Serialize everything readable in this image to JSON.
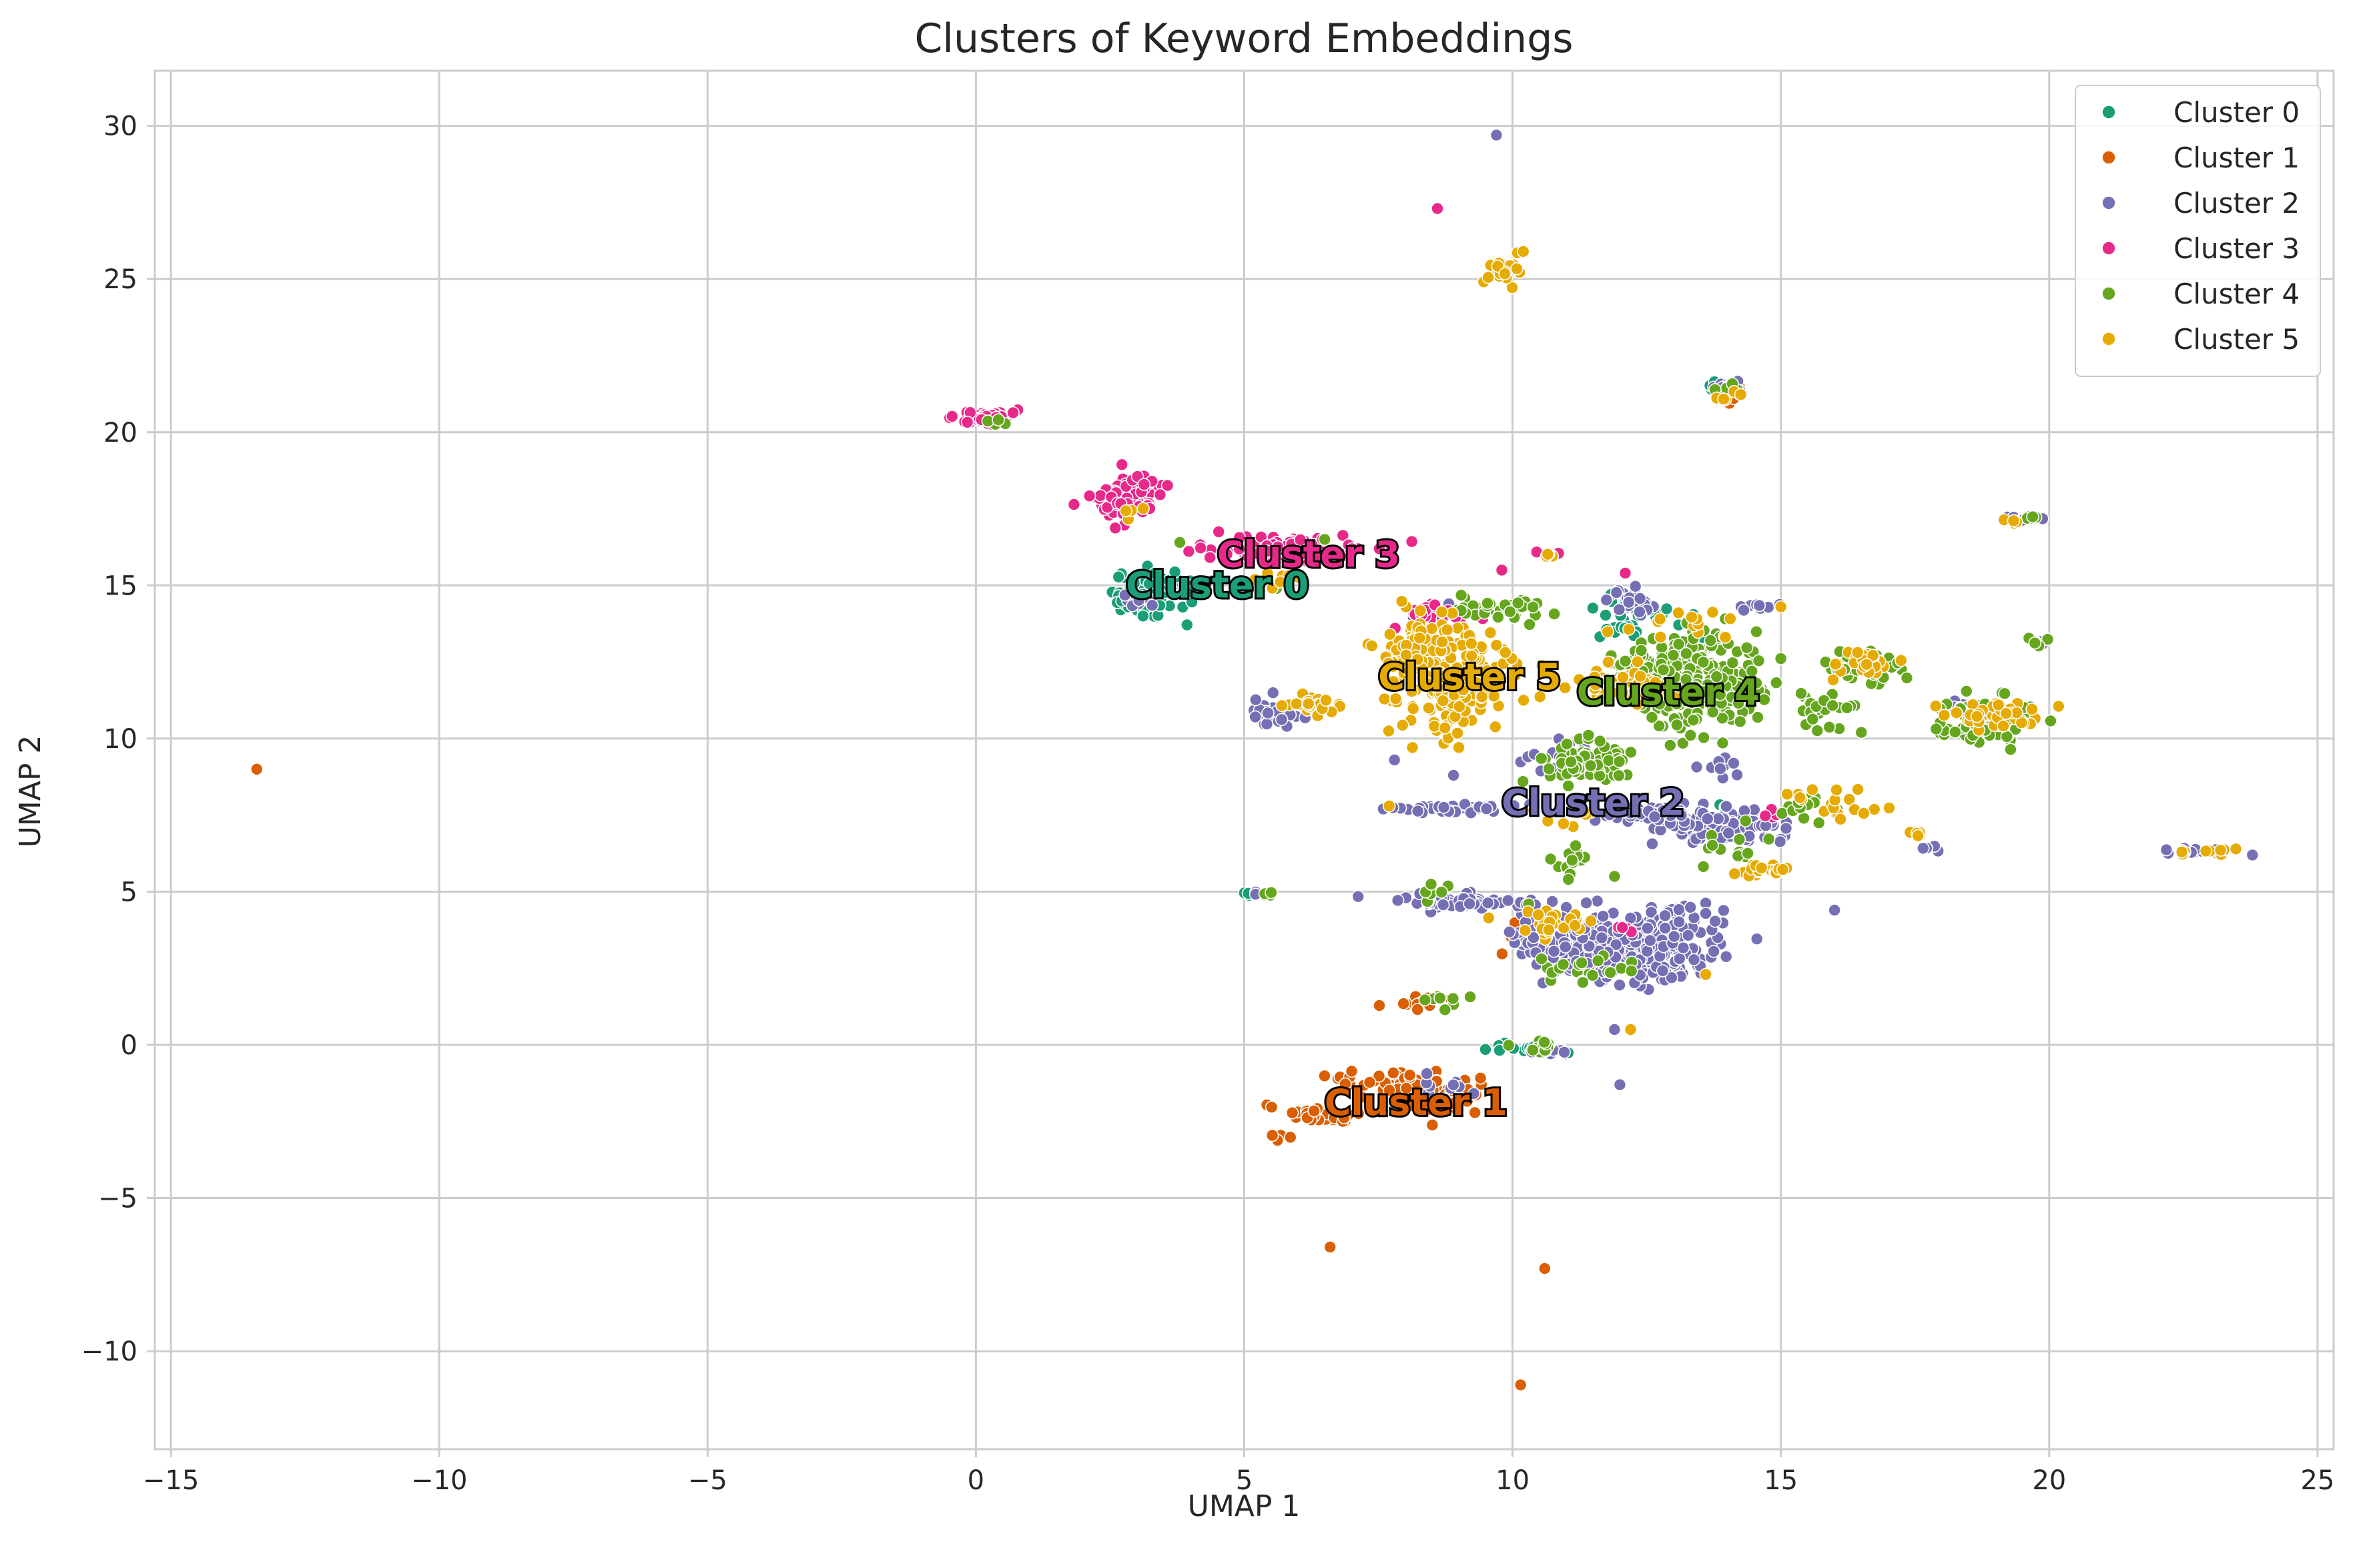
{
  "chart_data": {
    "type": "scatter",
    "title": "Clusters of Keyword Embeddings",
    "xlabel": "UMAP 1",
    "ylabel": "UMAP 2",
    "xlim": [
      -15.3,
      25.3
    ],
    "ylim": [
      -13.2,
      31.8
    ],
    "xticks": [
      -15,
      -10,
      -5,
      0,
      5,
      10,
      15,
      20,
      25
    ],
    "yticks": [
      -10,
      -5,
      0,
      5,
      10,
      15,
      20,
      25,
      30
    ],
    "xtick_labels": [
      "−15",
      "−10",
      "−5",
      "0",
      "5",
      "10",
      "15",
      "20",
      "25"
    ],
    "ytick_labels": [
      "−10",
      "−5",
      "0",
      "5",
      "10",
      "15",
      "20",
      "25",
      "30"
    ],
    "grid": true,
    "legend_position": "top-right",
    "series": [
      {
        "name": "Cluster 0",
        "color": "#1b9e77",
        "centroid": [
          4.5,
          15.0
        ],
        "label": "Cluster 0",
        "clusters": [
          [
            3.2,
            14.6,
            0.35,
            0.45,
            70
          ],
          [
            3.6,
            15.0,
            0.3,
            0.3,
            20
          ],
          [
            0.2,
            20.4,
            0.2,
            0.1,
            5
          ],
          [
            14.0,
            21.5,
            0.3,
            0.1,
            15
          ],
          [
            12.4,
            14.2,
            0.4,
            0.3,
            25
          ],
          [
            12.0,
            13.6,
            0.3,
            0.2,
            10
          ],
          [
            10.2,
            -0.1,
            0.4,
            0.12,
            15
          ],
          [
            14.0,
            7.8,
            0.1,
            0.1,
            3
          ],
          [
            5.2,
            4.9,
            0.15,
            0.05,
            4
          ],
          [
            13.2,
            13.0,
            0.4,
            0.3,
            10
          ]
        ],
        "outliers": []
      },
      {
        "name": "Cluster 1",
        "color": "#d95f02",
        "centroid": [
          8.2,
          -1.9
        ],
        "label": "Cluster 1",
        "clusters": [
          [
            6.5,
            -2.3,
            0.4,
            0.15,
            40
          ],
          [
            7.6,
            -1.1,
            0.6,
            0.25,
            30
          ],
          [
            8.6,
            -1.7,
            0.45,
            0.35,
            40
          ],
          [
            8.3,
            1.3,
            0.3,
            0.12,
            12
          ],
          [
            5.7,
            -3.0,
            0.2,
            0.15,
            4
          ],
          [
            5.5,
            -2.0,
            0.15,
            0.05,
            3
          ],
          [
            14.1,
            21.2,
            0.15,
            0.25,
            6
          ],
          [
            10.0,
            3.7,
            0.2,
            0.3,
            5
          ]
        ],
        "outliers": [
          [
            -13.4,
            9.0
          ],
          [
            6.6,
            -6.6
          ],
          [
            10.6,
            -7.3
          ],
          [
            10.15,
            -11.1
          ]
        ]
      },
      {
        "name": "Cluster 2",
        "color": "#7570b3",
        "centroid": [
          11.5,
          7.9
        ],
        "label": "Cluster 2",
        "clusters": [
          [
            12.2,
            3.0,
            0.8,
            0.55,
            260
          ],
          [
            10.8,
            3.6,
            0.6,
            0.5,
            90
          ],
          [
            13.0,
            4.0,
            0.5,
            0.3,
            60
          ],
          [
            9.0,
            4.7,
            0.8,
            0.15,
            60
          ],
          [
            13.8,
            7.2,
            0.6,
            0.4,
            90
          ],
          [
            12.5,
            7.5,
            0.5,
            0.15,
            40
          ],
          [
            9.0,
            7.7,
            0.7,
            0.08,
            40
          ],
          [
            5.6,
            10.8,
            0.3,
            0.25,
            30
          ],
          [
            3.0,
            14.5,
            0.2,
            0.1,
            10
          ],
          [
            12.2,
            14.5,
            0.3,
            0.3,
            20
          ],
          [
            14.5,
            14.3,
            0.3,
            0.1,
            10
          ],
          [
            14.0,
            21.5,
            0.2,
            0.1,
            10
          ],
          [
            19.5,
            17.2,
            0.2,
            0.08,
            8
          ],
          [
            19.8,
            13.2,
            0.08,
            0.1,
            4
          ],
          [
            22.8,
            6.3,
            0.4,
            0.08,
            18
          ],
          [
            17.9,
            6.5,
            0.15,
            0.1,
            5
          ],
          [
            18.5,
            11.0,
            0.3,
            0.1,
            10
          ],
          [
            11.0,
            9.3,
            0.4,
            0.4,
            20
          ],
          [
            8.6,
            14.1,
            0.3,
            0.2,
            10
          ],
          [
            10.8,
            -0.2,
            0.3,
            0.1,
            10
          ],
          [
            15.0,
            7.0,
            0.3,
            0.3,
            10
          ],
          [
            5.3,
            4.9,
            0.12,
            0.05,
            4
          ],
          [
            8.8,
            -1.3,
            0.3,
            0.2,
            10
          ],
          [
            13.9,
            9.0,
            0.3,
            0.3,
            10
          ]
        ],
        "outliers": [
          [
            9.7,
            29.7
          ],
          [
            16.0,
            4.4
          ],
          [
            12.0,
            -1.3
          ],
          [
            11.9,
            0.5
          ],
          [
            8.9,
            8.8
          ],
          [
            7.8,
            9.3
          ]
        ]
      },
      {
        "name": "Cluster 3",
        "color": "#e7298a",
        "centroid": [
          6.2,
          16.0
        ],
        "label": "Cluster 3",
        "clusters": [
          [
            0.15,
            20.5,
            0.25,
            0.12,
            60
          ],
          [
            2.8,
            17.9,
            0.35,
            0.5,
            70
          ],
          [
            5.8,
            16.2,
            0.9,
            0.25,
            90
          ],
          [
            8.7,
            14.1,
            0.4,
            0.2,
            25
          ],
          [
            10.7,
            16.1,
            0.1,
            0.05,
            3
          ],
          [
            14.7,
            7.5,
            0.15,
            0.08,
            5
          ],
          [
            12.0,
            3.8,
            0.2,
            0.1,
            4
          ]
        ],
        "outliers": [
          [
            8.6,
            27.3
          ],
          [
            12.1,
            15.4
          ],
          [
            9.8,
            15.5
          ]
        ]
      },
      {
        "name": "Cluster 4",
        "color": "#66a61e",
        "centroid": [
          12.9,
          11.5
        ],
        "label": "Cluster 4",
        "clusters": [
          [
            13.6,
            11.8,
            0.6,
            0.9,
            250
          ],
          [
            12.6,
            12.2,
            0.5,
            0.5,
            80
          ],
          [
            11.3,
            9.2,
            0.5,
            0.4,
            80
          ],
          [
            9.8,
            14.2,
            0.5,
            0.25,
            45
          ],
          [
            16.6,
            12.4,
            0.4,
            0.3,
            50
          ],
          [
            18.8,
            10.6,
            0.5,
            0.5,
            70
          ],
          [
            15.8,
            11.0,
            0.3,
            0.5,
            25
          ],
          [
            11.3,
            2.5,
            0.5,
            0.3,
            20
          ],
          [
            11.1,
            6.0,
            0.2,
            0.3,
            15
          ],
          [
            8.7,
            1.5,
            0.2,
            0.15,
            8
          ],
          [
            10.5,
            0.0,
            0.4,
            0.1,
            12
          ],
          [
            14.3,
            6.3,
            0.4,
            0.4,
            15
          ],
          [
            19.8,
            13.2,
            0.1,
            0.15,
            5
          ],
          [
            19.6,
            17.2,
            0.1,
            0.05,
            4
          ],
          [
            14.0,
            21.5,
            0.2,
            0.1,
            6
          ],
          [
            0.3,
            20.3,
            0.15,
            0.05,
            4
          ],
          [
            15.5,
            7.7,
            0.3,
            0.3,
            15
          ],
          [
            8.6,
            5.1,
            0.2,
            0.2,
            6
          ],
          [
            5.5,
            4.9,
            0.1,
            0.05,
            3
          ]
        ],
        "outliers": [
          [
            3.8,
            16.4
          ],
          [
            5.6,
            14.9
          ],
          [
            6.5,
            16.5
          ],
          [
            16.5,
            10.2
          ],
          [
            11.9,
            5.5
          ],
          [
            10.3,
            4.6
          ]
        ]
      },
      {
        "name": "Cluster 5",
        "color": "#e6ab02",
        "centroid": [
          9.2,
          12.0
        ],
        "label": "Cluster 5",
        "clusters": [
          [
            8.8,
            12.0,
            0.6,
            1.1,
            220
          ],
          [
            8.2,
            12.8,
            0.3,
            0.6,
            40
          ],
          [
            12.0,
            11.8,
            0.6,
            0.35,
            50
          ],
          [
            9.8,
            25.2,
            0.2,
            0.3,
            20
          ],
          [
            6.3,
            11.1,
            0.3,
            0.2,
            30
          ],
          [
            14.8,
            5.7,
            0.3,
            0.15,
            20
          ],
          [
            16.6,
            12.5,
            0.4,
            0.3,
            25
          ],
          [
            19.0,
            10.8,
            0.5,
            0.3,
            40
          ],
          [
            22.9,
            6.3,
            0.3,
            0.08,
            10
          ],
          [
            10.7,
            4.0,
            0.4,
            0.3,
            25
          ],
          [
            15.9,
            7.9,
            0.5,
            0.3,
            20
          ],
          [
            14.0,
            21.2,
            0.2,
            0.15,
            6
          ],
          [
            19.3,
            17.1,
            0.1,
            0.05,
            4
          ],
          [
            17.6,
            6.9,
            0.15,
            0.05,
            5
          ],
          [
            5.7,
            15.2,
            0.3,
            0.15,
            8
          ],
          [
            13.2,
            13.7,
            0.5,
            0.3,
            15
          ],
          [
            11.0,
            7.4,
            0.3,
            0.2,
            8
          ],
          [
            2.9,
            17.3,
            0.15,
            0.1,
            5
          ],
          [
            10.6,
            16.0,
            0.1,
            0.05,
            4
          ]
        ],
        "outliers": [
          [
            10.2,
            25.9
          ],
          [
            12.2,
            0.5
          ],
          [
            7.7,
            7.8
          ],
          [
            13.6,
            2.3
          ],
          [
            15.0,
            14.3
          ]
        ]
      }
    ]
  }
}
